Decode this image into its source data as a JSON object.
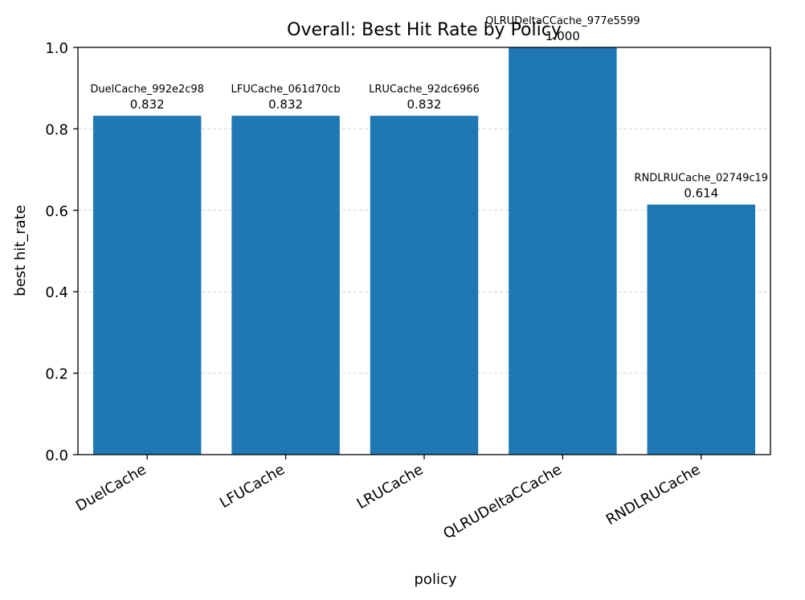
{
  "chart_data": {
    "type": "bar",
    "title": "Overall: Best Hit Rate by Policy",
    "xlabel": "policy",
    "ylabel": "best hit_rate",
    "categories": [
      "DuelCache",
      "LFUCache",
      "LRUCache",
      "QLRUDeltaCCache",
      "RNDLRUCache"
    ],
    "values": [
      0.832,
      0.832,
      0.832,
      1.0,
      0.614
    ],
    "bar_names": [
      "DuelCache_992e2c98",
      "LFUCache_061d70cb",
      "LRUCache_92dc6966",
      "QLRUDeltaCCache_977e5599",
      "RNDLRUCache_02749c19"
    ],
    "value_labels": [
      "0.832",
      "0.832",
      "0.832",
      "1.000",
      "0.614"
    ],
    "ylim": [
      0,
      1.0
    ],
    "yticks": [
      0.0,
      0.2,
      0.4,
      0.6,
      0.8,
      1.0
    ],
    "ytick_labels": [
      "0.0",
      "0.2",
      "0.4",
      "0.6",
      "0.8",
      "1.0"
    ],
    "grid": "y-dashed",
    "legend": "none",
    "colors": {
      "bar": "#1f77b4",
      "grid": "#cccccc",
      "axis": "#000000"
    }
  }
}
